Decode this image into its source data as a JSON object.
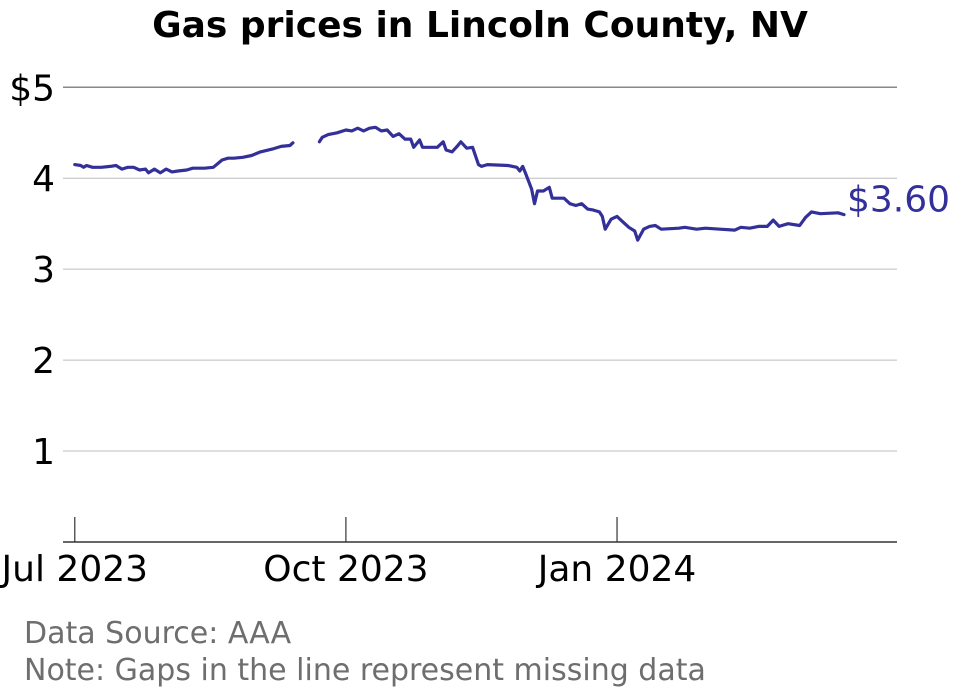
{
  "chart_data": {
    "type": "line",
    "title": "Gas prices in Lincoln County, NV",
    "xlabel": "",
    "ylabel": "",
    "x_range": [
      "2023-06-27",
      "2024-04-05"
    ],
    "ylim": [
      0,
      5.3
    ],
    "y_ticks": [
      1,
      2,
      3,
      4,
      5
    ],
    "y_tick_labels": [
      "1",
      "2",
      "3",
      "4",
      "$5"
    ],
    "x_ticks": [
      "2023-07-01",
      "2023-10-01",
      "2024-01-01"
    ],
    "x_tick_labels": [
      "Jul 2023",
      "Oct 2023",
      "Jan 2024"
    ],
    "grid": "horizontal",
    "legend": "none",
    "end_label": "$3.60",
    "line_color": "#33309a",
    "segments": [
      [
        [
          "2023-07-01",
          4.15
        ],
        [
          "2023-07-03",
          4.14
        ],
        [
          "2023-07-04",
          4.12
        ],
        [
          "2023-07-05",
          4.14
        ],
        [
          "2023-07-07",
          4.12
        ],
        [
          "2023-07-10",
          4.12
        ],
        [
          "2023-07-13",
          4.13
        ],
        [
          "2023-07-15",
          4.14
        ],
        [
          "2023-07-17",
          4.1
        ],
        [
          "2023-07-19",
          4.12
        ],
        [
          "2023-07-21",
          4.12
        ],
        [
          "2023-07-23",
          4.09
        ],
        [
          "2023-07-25",
          4.1
        ],
        [
          "2023-07-26",
          4.06
        ],
        [
          "2023-07-28",
          4.1
        ],
        [
          "2023-07-30",
          4.06
        ],
        [
          "2023-08-01",
          4.1
        ],
        [
          "2023-08-03",
          4.07
        ],
        [
          "2023-08-05",
          4.08
        ],
        [
          "2023-08-08",
          4.09
        ],
        [
          "2023-08-10",
          4.11
        ],
        [
          "2023-08-14",
          4.11
        ],
        [
          "2023-08-17",
          4.12
        ],
        [
          "2023-08-20",
          4.2
        ],
        [
          "2023-08-22",
          4.22
        ],
        [
          "2023-08-24",
          4.22
        ],
        [
          "2023-08-27",
          4.23
        ],
        [
          "2023-08-30",
          4.25
        ],
        [
          "2023-09-02",
          4.29
        ],
        [
          "2023-09-06",
          4.32
        ],
        [
          "2023-09-09",
          4.35
        ],
        [
          "2023-09-12",
          4.36
        ],
        [
          "2023-09-13",
          4.39
        ]
      ],
      [
        [
          "2023-09-22",
          4.4
        ],
        [
          "2023-09-23",
          4.45
        ],
        [
          "2023-09-25",
          4.48
        ],
        [
          "2023-09-28",
          4.5
        ],
        [
          "2023-10-01",
          4.53
        ],
        [
          "2023-10-03",
          4.52
        ],
        [
          "2023-10-05",
          4.55
        ],
        [
          "2023-10-07",
          4.52
        ],
        [
          "2023-10-09",
          4.55
        ],
        [
          "2023-10-11",
          4.56
        ],
        [
          "2023-10-13",
          4.52
        ],
        [
          "2023-10-15",
          4.53
        ],
        [
          "2023-10-17",
          4.46
        ],
        [
          "2023-10-19",
          4.49
        ],
        [
          "2023-10-21",
          4.43
        ],
        [
          "2023-10-23",
          4.43
        ],
        [
          "2023-10-24",
          4.34
        ],
        [
          "2023-10-26",
          4.42
        ],
        [
          "2023-10-27",
          4.34
        ],
        [
          "2023-11-01",
          4.34
        ],
        [
          "2023-11-03",
          4.4
        ],
        [
          "2023-11-04",
          4.31
        ],
        [
          "2023-11-06",
          4.29
        ],
        [
          "2023-11-08",
          4.36
        ],
        [
          "2023-11-09",
          4.4
        ],
        [
          "2023-11-11",
          4.33
        ],
        [
          "2023-11-13",
          4.34
        ],
        [
          "2023-11-15",
          4.15
        ],
        [
          "2023-11-16",
          4.13
        ],
        [
          "2023-11-18",
          4.15
        ],
        [
          "2023-11-25",
          4.14
        ],
        [
          "2023-11-28",
          4.12
        ],
        [
          "2023-11-29",
          4.08
        ],
        [
          "2023-11-30",
          4.13
        ],
        [
          "2023-12-01",
          4.05
        ],
        [
          "2023-12-03",
          3.88
        ],
        [
          "2023-12-04",
          3.72
        ],
        [
          "2023-12-05",
          3.86
        ],
        [
          "2023-12-07",
          3.86
        ],
        [
          "2023-12-09",
          3.9
        ],
        [
          "2023-12-10",
          3.78
        ],
        [
          "2023-12-12",
          3.78
        ],
        [
          "2023-12-14",
          3.78
        ],
        [
          "2023-12-16",
          3.72
        ],
        [
          "2023-12-18",
          3.7
        ],
        [
          "2023-12-20",
          3.72
        ],
        [
          "2023-12-22",
          3.66
        ],
        [
          "2023-12-24",
          3.65
        ],
        [
          "2023-12-26",
          3.63
        ],
        [
          "2023-12-27",
          3.58
        ],
        [
          "2023-12-28",
          3.44
        ],
        [
          "2023-12-30",
          3.55
        ],
        [
          "2024-01-01",
          3.58
        ],
        [
          "2024-01-03",
          3.52
        ],
        [
          "2024-01-05",
          3.46
        ],
        [
          "2024-01-07",
          3.42
        ],
        [
          "2024-01-08",
          3.32
        ],
        [
          "2024-01-10",
          3.44
        ],
        [
          "2024-01-12",
          3.47
        ],
        [
          "2024-01-14",
          3.48
        ],
        [
          "2024-01-16",
          3.44
        ],
        [
          "2024-01-22",
          3.45
        ],
        [
          "2024-01-24",
          3.46
        ],
        [
          "2024-01-28",
          3.44
        ],
        [
          "2024-01-31",
          3.45
        ],
        [
          "2024-02-05",
          3.44
        ],
        [
          "2024-02-10",
          3.43
        ],
        [
          "2024-02-12",
          3.46
        ],
        [
          "2024-02-15",
          3.45
        ],
        [
          "2024-02-18",
          3.47
        ],
        [
          "2024-02-21",
          3.47
        ],
        [
          "2024-02-23",
          3.54
        ],
        [
          "2024-02-25",
          3.47
        ],
        [
          "2024-02-28",
          3.5
        ],
        [
          "2024-03-03",
          3.48
        ],
        [
          "2024-03-05",
          3.57
        ],
        [
          "2024-03-07",
          3.63
        ],
        [
          "2024-03-10",
          3.61
        ],
        [
          "2024-03-16",
          3.62
        ],
        [
          "2024-03-18",
          3.6
        ]
      ]
    ]
  },
  "footer": {
    "source": "Data Source: AAA",
    "note": "Note: Gaps in the line represent missing data"
  }
}
